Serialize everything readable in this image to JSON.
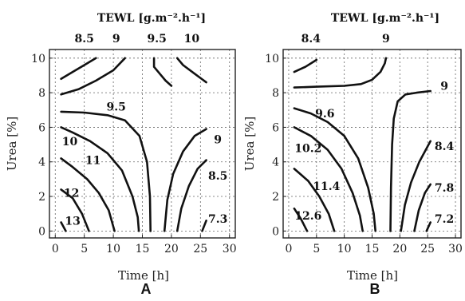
{
  "chart_data": [
    {
      "type": "contour",
      "panel_label": "A",
      "title": "TEWL [g.m⁻².h⁻¹]",
      "xlabel": "Time [h]",
      "ylabel": "Urea [%]",
      "xlim": [
        -1,
        31
      ],
      "ylim": [
        -0.4,
        10.5
      ],
      "xticks": [
        0,
        5,
        10,
        15,
        20,
        25,
        30
      ],
      "yticks": [
        0,
        2,
        4,
        6,
        8,
        10
      ],
      "grid": true,
      "contours": [
        {
          "level": "8.5",
          "points": [
            [
              1,
              8.8
            ],
            [
              3,
              9.2
            ],
            [
              5,
              9.6
            ],
            [
              7,
              10.0
            ]
          ]
        },
        {
          "level": "9",
          "points": [
            [
              1,
              7.9
            ],
            [
              4,
              8.2
            ],
            [
              7,
              8.7
            ],
            [
              10,
              9.3
            ],
            [
              12,
              10.0
            ]
          ]
        },
        {
          "level": "9.5",
          "points": [
            [
              17,
              10.0
            ],
            [
              17,
              9.5
            ],
            [
              18,
              9.1
            ],
            [
              19,
              8.7
            ],
            [
              20,
              8.4
            ]
          ]
        },
        {
          "level": "10",
          "points": [
            [
              21,
              10.0
            ],
            [
              22,
              9.6
            ],
            [
              24,
              9.1
            ],
            [
              26,
              8.6
            ]
          ]
        },
        {
          "level": "9.5",
          "points": [
            [
              1,
              6.9
            ],
            [
              5,
              6.85
            ],
            [
              9,
              6.7
            ],
            [
              12,
              6.4
            ],
            [
              14.5,
              5.5
            ],
            [
              15.8,
              4.0
            ],
            [
              16.3,
              2.0
            ],
            [
              16.4,
              0.0
            ]
          ]
        },
        {
          "level": "10",
          "points": [
            [
              1,
              6.0
            ],
            [
              3,
              5.7
            ],
            [
              6,
              5.2
            ],
            [
              9,
              4.5
            ],
            [
              11.5,
              3.5
            ],
            [
              13.3,
              2.0
            ],
            [
              14.2,
              0.8
            ],
            [
              14.4,
              0.0
            ]
          ]
        },
        {
          "level": "11",
          "points": [
            [
              1,
              4.2
            ],
            [
              3,
              3.7
            ],
            [
              5.5,
              3.0
            ],
            [
              7.5,
              2.2
            ],
            [
              9.2,
              1.2
            ],
            [
              10.2,
              0.0
            ]
          ]
        },
        {
          "level": "12",
          "points": [
            [
              1,
              2.4
            ],
            [
              3,
              1.9
            ],
            [
              4.6,
              1.0
            ],
            [
              5.8,
              0.0
            ]
          ]
        },
        {
          "level": "13",
          "points": [
            [
              1,
              0.5
            ],
            [
              1.8,
              0.0
            ]
          ]
        },
        {
          "level": "9",
          "points": [
            [
              18.8,
              0.0
            ],
            [
              19.3,
              1.8
            ],
            [
              20.3,
              3.3
            ],
            [
              22,
              4.6
            ],
            [
              24,
              5.5
            ],
            [
              26,
              5.9
            ]
          ]
        },
        {
          "level": "8.5",
          "points": [
            [
              21,
              0.0
            ],
            [
              21.7,
              1.3
            ],
            [
              23,
              2.6
            ],
            [
              24.5,
              3.6
            ],
            [
              26,
              4.1
            ]
          ]
        },
        {
          "level": "7.3",
          "points": [
            [
              25.3,
              0.0
            ],
            [
              26,
              0.6
            ]
          ]
        }
      ],
      "labels": [
        {
          "text": "8.5",
          "x": 5,
          "y": 10.8
        },
        {
          "text": "9",
          "x": 10.5,
          "y": 10.8
        },
        {
          "text": "9.5",
          "x": 17.5,
          "y": 10.8
        },
        {
          "text": "10",
          "x": 23.5,
          "y": 10.8
        },
        {
          "text": "9.5",
          "x": 10.5,
          "y": 7.2
        },
        {
          "text": "10",
          "x": 2.5,
          "y": 5.2
        },
        {
          "text": "11",
          "x": 6.5,
          "y": 4.1
        },
        {
          "text": "12",
          "x": 2.8,
          "y": 2.2
        },
        {
          "text": "13",
          "x": 3,
          "y": 0.6
        },
        {
          "text": "9",
          "x": 28,
          "y": 5.3
        },
        {
          "text": "8.5",
          "x": 28,
          "y": 3.2
        },
        {
          "text": "7.3",
          "x": 28,
          "y": 0.7
        }
      ]
    },
    {
      "type": "contour",
      "panel_label": "B",
      "title": "TEWL [g.m⁻².h⁻¹]",
      "xlabel": "Time [h]",
      "ylabel": "Urea [%]",
      "xlim": [
        -1,
        31
      ],
      "ylim": [
        -0.4,
        10.5
      ],
      "xticks": [
        0,
        5,
        10,
        15,
        20,
        25,
        30
      ],
      "yticks": [
        0,
        2,
        4,
        6,
        8,
        10
      ],
      "grid": true,
      "contours": [
        {
          "level": "8.4",
          "points": [
            [
              1,
              9.2
            ],
            [
              3,
              9.5
            ],
            [
              5,
              9.9
            ]
          ]
        },
        {
          "level": "9",
          "points": [
            [
              1,
              8.3
            ],
            [
              5,
              8.35
            ],
            [
              10,
              8.4
            ],
            [
              13,
              8.5
            ],
            [
              15,
              8.75
            ],
            [
              16.5,
              9.2
            ],
            [
              17.3,
              9.7
            ],
            [
              17.5,
              10.0
            ]
          ]
        },
        {
          "level": "9",
          "points": [
            [
              18.3,
              0.0
            ],
            [
              18.4,
              2.5
            ],
            [
              18.6,
              5.0
            ],
            [
              18.9,
              6.5
            ],
            [
              19.6,
              7.5
            ],
            [
              21,
              7.9
            ],
            [
              23,
              8.0
            ],
            [
              25.5,
              8.1
            ]
          ]
        },
        {
          "level": "9.6",
          "points": [
            [
              1,
              7.1
            ],
            [
              4,
              6.8
            ],
            [
              7,
              6.3
            ],
            [
              10,
              5.5
            ],
            [
              12.5,
              4.2
            ],
            [
              14.3,
              2.5
            ],
            [
              15.3,
              1.0
            ],
            [
              15.6,
              0.0
            ]
          ]
        },
        {
          "level": "10.2",
          "points": [
            [
              1,
              6.0
            ],
            [
              4,
              5.5
            ],
            [
              7,
              4.7
            ],
            [
              9.5,
              3.6
            ],
            [
              11.5,
              2.2
            ],
            [
              12.8,
              0.9
            ],
            [
              13.3,
              0.0
            ]
          ]
        },
        {
          "level": "11.4",
          "points": [
            [
              1,
              3.6
            ],
            [
              3.5,
              2.9
            ],
            [
              5.5,
              2.0
            ],
            [
              7.2,
              1.0
            ],
            [
              8.2,
              0.0
            ]
          ]
        },
        {
          "level": "12.6",
          "points": [
            [
              1,
              1.3
            ],
            [
              2.2,
              0.7
            ],
            [
              3.3,
              0.0
            ]
          ]
        },
        {
          "level": "8.4",
          "points": [
            [
              20.2,
              0.0
            ],
            [
              20.9,
              1.5
            ],
            [
              22,
              2.8
            ],
            [
              23.5,
              4.0
            ],
            [
              25,
              4.9
            ],
            [
              25.5,
              5.2
            ]
          ]
        },
        {
          "level": "7.8",
          "points": [
            [
              22.6,
              0.0
            ],
            [
              23.4,
              1.2
            ],
            [
              24.5,
              2.2
            ],
            [
              25.5,
              2.7
            ]
          ]
        },
        {
          "level": "7.2",
          "points": [
            [
              24.8,
              0.0
            ],
            [
              25.5,
              0.5
            ]
          ]
        }
      ],
      "labels": [
        {
          "text": "8.4",
          "x": 4,
          "y": 10.8
        },
        {
          "text": "9",
          "x": 17.5,
          "y": 10.8
        },
        {
          "text": "9",
          "x": 28,
          "y": 8.4
        },
        {
          "text": "9.6",
          "x": 6.5,
          "y": 6.8
        },
        {
          "text": "10.2",
          "x": 3.5,
          "y": 4.8
        },
        {
          "text": "11.4",
          "x": 6.8,
          "y": 2.6
        },
        {
          "text": "12.6",
          "x": 3.5,
          "y": 0.9
        },
        {
          "text": "8.4",
          "x": 28,
          "y": 4.9
        },
        {
          "text": "7.8",
          "x": 28,
          "y": 2.5
        },
        {
          "text": "7.2",
          "x": 28,
          "y": 0.7
        }
      ]
    }
  ]
}
